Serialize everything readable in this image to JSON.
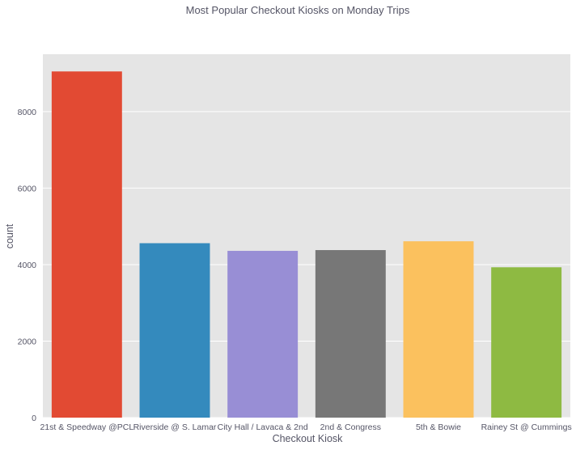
{
  "chart_data": {
    "type": "bar",
    "title": "Most Popular Checkout Kiosks on Monday Trips",
    "xlabel": "Checkout Kiosk",
    "ylabel": "count",
    "categories": [
      "21st & Speedway @PCL",
      "Riverside @ S. Lamar",
      "City Hall / Lavaca & 2nd",
      "2nd & Congress",
      "5th & Bowie",
      "Rainey St @ Cummings"
    ],
    "values": [
      9050,
      4560,
      4360,
      4380,
      4610,
      3930
    ],
    "colors": [
      "#E24A33",
      "#348ABD",
      "#988ED5",
      "#777777",
      "#FBC15E",
      "#8EBA42"
    ],
    "yticks": [
      0,
      2000,
      4000,
      6000,
      8000
    ],
    "ylim": [
      0,
      9500
    ],
    "background": "#E5E5E5",
    "grid": true,
    "legend": "none"
  }
}
